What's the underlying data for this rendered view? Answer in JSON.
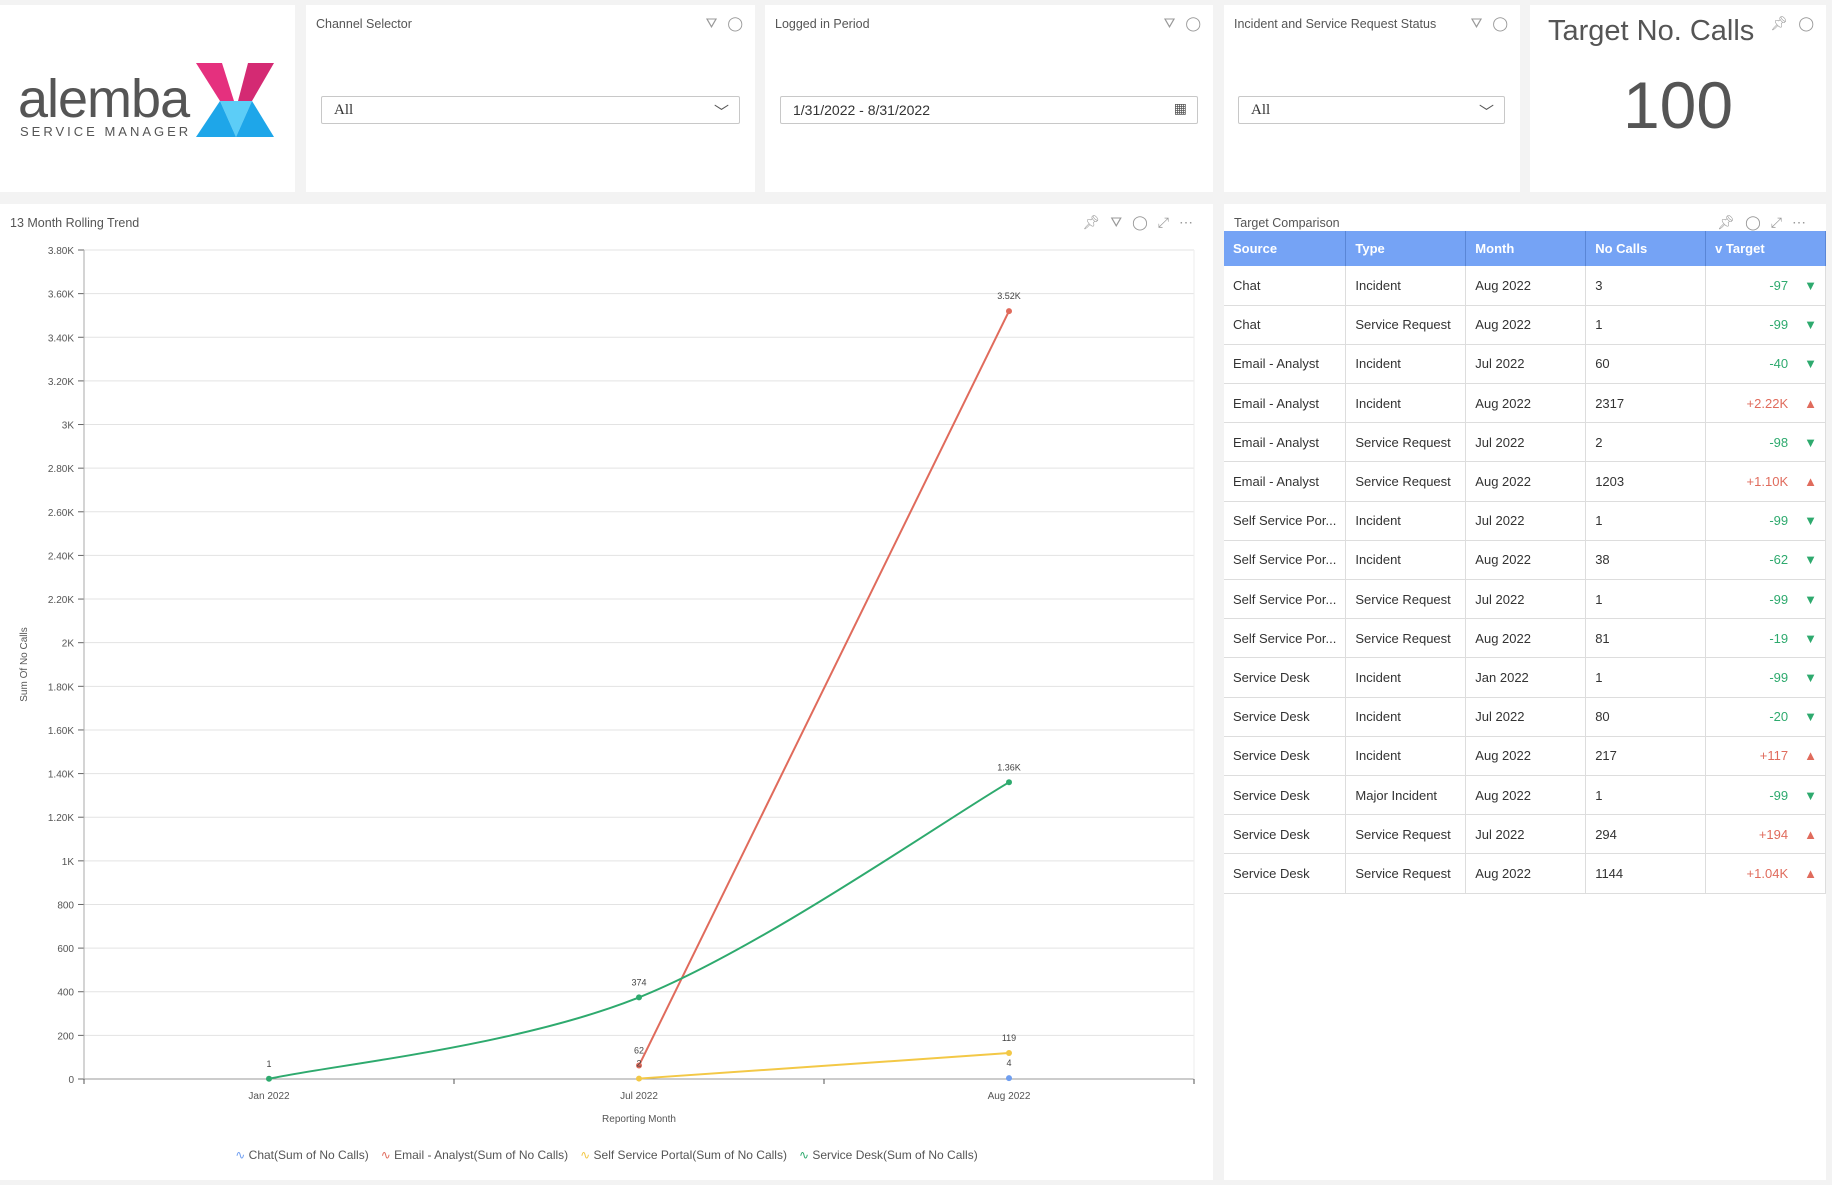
{
  "logo": {
    "word": "alemba",
    "sub": "SERVICE MANAGER"
  },
  "channel": {
    "title": "Channel Selector",
    "value": "All"
  },
  "period": {
    "title": "Logged in Period",
    "value": "1/31/2022 - 8/31/2022"
  },
  "status": {
    "title": "Incident and Service Request Status",
    "value": "All"
  },
  "target": {
    "title": "Target No. Calls",
    "value": "100"
  },
  "trend": {
    "title": "13 Month Rolling Trend"
  },
  "comparison": {
    "title": "Target Comparison",
    "columns": [
      "Source",
      "Type",
      "Month",
      "No Calls",
      "v Target"
    ],
    "rows": [
      [
        "Chat",
        "Incident",
        "Aug 2022",
        "3",
        "-97",
        "down"
      ],
      [
        "Chat",
        "Service Request",
        "Aug 2022",
        "1",
        "-99",
        "down"
      ],
      [
        "Email - Analyst",
        "Incident",
        "Jul 2022",
        "60",
        "-40",
        "down"
      ],
      [
        "Email - Analyst",
        "Incident",
        "Aug 2022",
        "2317",
        "+2.22K",
        "up"
      ],
      [
        "Email - Analyst",
        "Service Request",
        "Jul 2022",
        "2",
        "-98",
        "down"
      ],
      [
        "Email - Analyst",
        "Service Request",
        "Aug 2022",
        "1203",
        "+1.10K",
        "up"
      ],
      [
        "Self Service Por...",
        "Incident",
        "Jul 2022",
        "1",
        "-99",
        "down"
      ],
      [
        "Self Service Por...",
        "Incident",
        "Aug 2022",
        "38",
        "-62",
        "down"
      ],
      [
        "Self Service Por...",
        "Service Request",
        "Jul 2022",
        "1",
        "-99",
        "down"
      ],
      [
        "Self Service Por...",
        "Service Request",
        "Aug 2022",
        "81",
        "-19",
        "down"
      ],
      [
        "Service Desk",
        "Incident",
        "Jan 2022",
        "1",
        "-99",
        "down"
      ],
      [
        "Service Desk",
        "Incident",
        "Jul 2022",
        "80",
        "-20",
        "down"
      ],
      [
        "Service Desk",
        "Incident",
        "Aug 2022",
        "217",
        "+117",
        "up"
      ],
      [
        "Service Desk",
        "Major Incident",
        "Aug 2022",
        "1",
        "-99",
        "down"
      ],
      [
        "Service Desk",
        "Service Request",
        "Jul 2022",
        "294",
        "+194",
        "up"
      ],
      [
        "Service Desk",
        "Service Request",
        "Aug 2022",
        "1144",
        "+1.04K",
        "up"
      ]
    ]
  },
  "colors": {
    "up": "#e06b5c",
    "down": "#2eaa6e",
    "header": "#75a3f5"
  },
  "chart_data": {
    "type": "line",
    "xlabel": "Reporting Month",
    "ylabel": "Sum Of No Calls",
    "categories": [
      "Jan 2022",
      "Jul 2022",
      "Aug 2022"
    ],
    "ylim": [
      0,
      3800
    ],
    "yticks": [
      "0",
      "200",
      "400",
      "600",
      "800",
      "1K",
      "1.20K",
      "1.40K",
      "1.60K",
      "1.80K",
      "2K",
      "2.20K",
      "2.40K",
      "2.60K",
      "2.80K",
      "3K",
      "3.20K",
      "3.40K",
      "3.60K",
      "3.80K"
    ],
    "grid": true,
    "legend": "bottom",
    "series": [
      {
        "name": "Chat(Sum of No Calls)",
        "color": "#6f9ef0",
        "values": [
          null,
          null,
          4
        ],
        "labels": [
          null,
          null,
          "4"
        ]
      },
      {
        "name": "Email - Analyst(Sum of No Calls)",
        "color": "#e06b5c",
        "values": [
          null,
          62,
          3520
        ],
        "labels": [
          null,
          "62",
          "3.52K"
        ]
      },
      {
        "name": "Self Service Portal(Sum of No Calls)",
        "color": "#f3c846",
        "values": [
          null,
          2,
          119
        ],
        "labels": [
          null,
          "2",
          "119"
        ]
      },
      {
        "name": "Service Desk(Sum of No Calls)",
        "color": "#2eaa6e",
        "values": [
          1,
          374,
          1360
        ],
        "labels": [
          "1",
          "374",
          "1.36K"
        ],
        "smooth": true
      }
    ]
  }
}
